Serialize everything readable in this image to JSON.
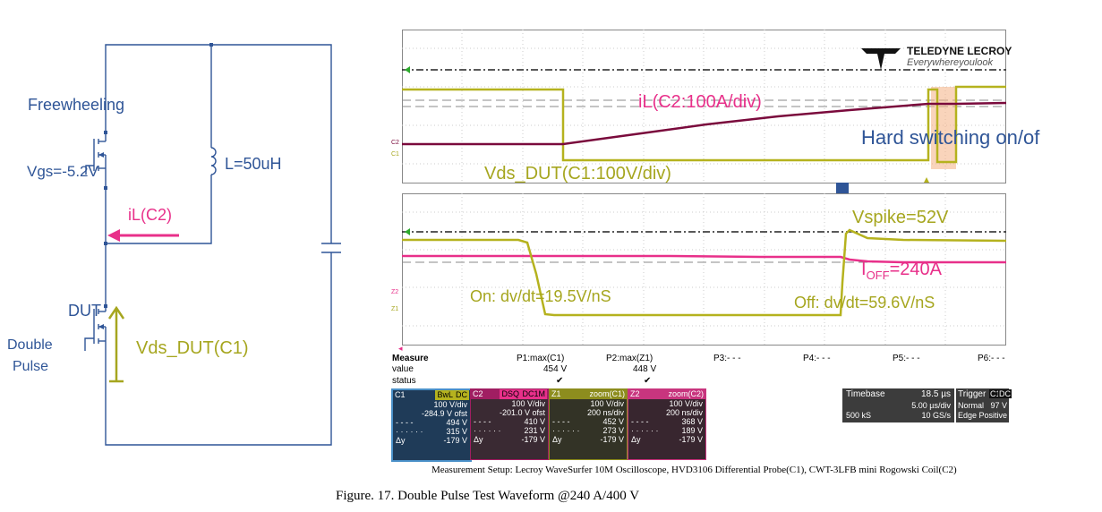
{
  "circuit": {
    "freewheeling_label": "Freewheeling",
    "vgs_label": "Vgs=-5.2V",
    "inductor_label": "L=50uH",
    "il_label": "iL(C2)",
    "dut_label": "DUT",
    "double_pulse_line1": "Double",
    "double_pulse_line2": "Pulse",
    "vds_label": "Vds_DUT(C1)"
  },
  "scope": {
    "brand_name": "TELEDYNE LECROY",
    "brand_tagline": "Everywhereyoulook",
    "top_annotations": {
      "il": "iL(C2:100A/div)",
      "hard_switching": "Hard switching on/of",
      "vds": "Vds_DUT(C1:100V/div)",
      "ch_c2": "C2",
      "ch_c1": "C1"
    },
    "bottom_annotations": {
      "vspike": "Vspike=52V",
      "ioff_main": "I",
      "ioff_sub": "OFF",
      "ioff_value": "=240A",
      "on_slope": "On: dv/dt=19.5V/nS",
      "off_slope": "Off:  dv/dt=59.6V/nS",
      "ch_z2": "Z2",
      "ch_z1": "Z1"
    },
    "measure": {
      "header": "Measure",
      "columns": [
        "P1:max(C1)",
        "P2:max(Z1)",
        "P3:- - -",
        "P4:- - -",
        "P5:- - -",
        "P6:- - -"
      ],
      "value_label": "value",
      "values": [
        "454 V",
        "448 V"
      ],
      "status_label": "status",
      "status": [
        "✔",
        "✔"
      ]
    },
    "channels": [
      {
        "name": "C1",
        "tags": [
          "BwL",
          "DC"
        ],
        "color": "#2b5f8e",
        "rows": [
          [
            "",
            "100 V/div"
          ],
          [
            "",
            "-284.9 V ofst"
          ],
          [
            "- - - -",
            "494 V"
          ],
          [
            "· · · · · ·",
            "315 V"
          ],
          [
            "Δy",
            "-179 V"
          ]
        ]
      },
      {
        "name": "C2",
        "tags": [
          "DSQ",
          "DC1M"
        ],
        "color": "#a01e62",
        "rows": [
          [
            "",
            "100 V/div"
          ],
          [
            "",
            "-201.0 V ofst"
          ],
          [
            "- - - -",
            "410 V"
          ],
          [
            "· · · · · ·",
            "231 V"
          ],
          [
            "Δy",
            "-179 V"
          ]
        ]
      },
      {
        "name": "Z1",
        "tags": [
          "zoom(C1)"
        ],
        "color": "#8d8d1e",
        "rows": [
          [
            "",
            "100 V/div"
          ],
          [
            "",
            "200 ns/div"
          ],
          [
            "- - - -",
            "452 V"
          ],
          [
            "· · · · · ·",
            "273 V"
          ],
          [
            "Δy",
            "-179 V"
          ]
        ]
      },
      {
        "name": "Z2",
        "tags": [
          "zoom(C2)"
        ],
        "color": "#c8357e",
        "rows": [
          [
            "",
            "100 V/div"
          ],
          [
            "",
            "200 ns/div"
          ],
          [
            "- - - -",
            "368 V"
          ],
          [
            "· · · · · ·",
            "189 V"
          ],
          [
            "Δy",
            "-179 V"
          ]
        ]
      }
    ],
    "timebase": {
      "label": "Timebase",
      "value": "18.5 µs",
      "per_div": "5.00 µs/div",
      "samples": "500 kS",
      "rate": "10 GS/s"
    },
    "trigger": {
      "label": "Trigger",
      "tags": [
        "C1",
        "DC"
      ],
      "mode": "Normal",
      "level": "97 V",
      "type": "Edge",
      "slope": "Positive"
    },
    "colors": {
      "c1": "#b5b21e",
      "c2": "#7a0a3c",
      "z2": "#e8308a",
      "annotation_blue": "#2f5597",
      "annotation_green": "#a6a61f"
    }
  },
  "captions": {
    "measurement_setup": "Measurement Setup:  Lecroy WaveSurfer 10M Oscilloscope, HVD3106 Differential Probe(C1), CWT-3LFB mini Rogowski Coil(C2)",
    "figure": "Figure. 17. Double Pulse Test Waveform @240 A/400 V"
  }
}
